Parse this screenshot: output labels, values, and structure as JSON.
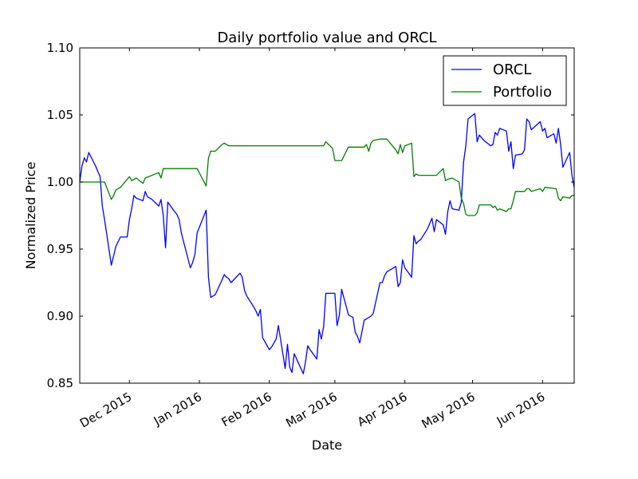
{
  "chart_data": {
    "type": "line",
    "title": "Daily portfolio value and ORCL",
    "xlabel": "Date",
    "ylabel": "Normalized Price",
    "ylim": [
      0.85,
      1.1
    ],
    "xlim": [
      "2015-11-09",
      "2016-06-15"
    ],
    "grid": false,
    "legend_position": "top-right",
    "y_ticks": [
      "0.85",
      "0.90",
      "0.95",
      "1.00",
      "1.05",
      "1.10"
    ],
    "x_ticks": [
      {
        "date": "2015-12-01",
        "label": "Dec 2015"
      },
      {
        "date": "2016-01-01",
        "label": "Jan 2016"
      },
      {
        "date": "2016-02-01",
        "label": "Feb 2016"
      },
      {
        "date": "2016-03-01",
        "label": "Mar 2016"
      },
      {
        "date": "2016-04-01",
        "label": "Apr 2016"
      },
      {
        "date": "2016-05-01",
        "label": "May 2016"
      },
      {
        "date": "2016-06-01",
        "label": "Jun 2016"
      }
    ],
    "series": [
      {
        "name": "ORCL",
        "color": "#0000ff",
        "points": [
          [
            "2015-11-09",
            1.0
          ],
          [
            "2015-11-10",
            1.012
          ],
          [
            "2015-11-11",
            1.018
          ],
          [
            "2015-11-12",
            1.015
          ],
          [
            "2015-11-13",
            1.022
          ],
          [
            "2015-11-16",
            1.012
          ],
          [
            "2015-11-17",
            1.008
          ],
          [
            "2015-11-18",
            1.004
          ],
          [
            "2015-11-19",
            0.982
          ],
          [
            "2015-11-20",
            0.972
          ],
          [
            "2015-11-23",
            0.938
          ],
          [
            "2015-11-24",
            0.945
          ],
          [
            "2015-11-25",
            0.952
          ],
          [
            "2015-11-27",
            0.959
          ],
          [
            "2015-11-30",
            0.959
          ],
          [
            "2015-12-01",
            0.972
          ],
          [
            "2015-12-02",
            0.98
          ],
          [
            "2015-12-03",
            0.99
          ],
          [
            "2015-12-04",
            0.988
          ],
          [
            "2015-12-07",
            0.986
          ],
          [
            "2015-12-08",
            0.993
          ],
          [
            "2015-12-09",
            0.989
          ],
          [
            "2015-12-10",
            0.988
          ],
          [
            "2015-12-11",
            0.987
          ],
          [
            "2015-12-14",
            0.982
          ],
          [
            "2015-12-15",
            0.987
          ],
          [
            "2015-12-16",
            0.975
          ],
          [
            "2015-12-17",
            0.951
          ],
          [
            "2015-12-18",
            0.985
          ],
          [
            "2015-12-21",
            0.978
          ],
          [
            "2015-12-22",
            0.976
          ],
          [
            "2015-12-23",
            0.972
          ],
          [
            "2015-12-24",
            0.962
          ],
          [
            "2015-12-28",
            0.936
          ],
          [
            "2015-12-29",
            0.94
          ],
          [
            "2015-12-30",
            0.946
          ],
          [
            "2015-12-31",
            0.962
          ],
          [
            "2016-01-04",
            0.979
          ],
          [
            "2016-01-05",
            0.929
          ],
          [
            "2016-01-06",
            0.914
          ],
          [
            "2016-01-07",
            0.915
          ],
          [
            "2016-01-08",
            0.916
          ],
          [
            "2016-01-11",
            0.927
          ],
          [
            "2016-01-12",
            0.931
          ],
          [
            "2016-01-13",
            0.929
          ],
          [
            "2016-01-14",
            0.928
          ],
          [
            "2016-01-15",
            0.925
          ],
          [
            "2016-01-19",
            0.932
          ],
          [
            "2016-01-20",
            0.929
          ],
          [
            "2016-01-21",
            0.919
          ],
          [
            "2016-01-22",
            0.915
          ],
          [
            "2016-01-25",
            0.907
          ],
          [
            "2016-01-26",
            0.904
          ],
          [
            "2016-01-27",
            0.9
          ],
          [
            "2016-01-28",
            0.905
          ],
          [
            "2016-01-29",
            0.884
          ],
          [
            "2016-02-01",
            0.875
          ],
          [
            "2016-02-02",
            0.877
          ],
          [
            "2016-02-03",
            0.88
          ],
          [
            "2016-02-04",
            0.883
          ],
          [
            "2016-02-05",
            0.893
          ],
          [
            "2016-02-08",
            0.861
          ],
          [
            "2016-02-09",
            0.879
          ],
          [
            "2016-02-10",
            0.862
          ],
          [
            "2016-02-11",
            0.858
          ],
          [
            "2016-02-12",
            0.872
          ],
          [
            "2016-02-16",
            0.857
          ],
          [
            "2016-02-17",
            0.866
          ],
          [
            "2016-02-18",
            0.878
          ],
          [
            "2016-02-19",
            0.875
          ],
          [
            "2016-02-22",
            0.868
          ],
          [
            "2016-02-23",
            0.89
          ],
          [
            "2016-02-24",
            0.883
          ],
          [
            "2016-02-25",
            0.892
          ],
          [
            "2016-02-26",
            0.917
          ],
          [
            "2016-02-29",
            0.917
          ],
          [
            "2016-03-01",
            0.917
          ],
          [
            "2016-03-02",
            0.893
          ],
          [
            "2016-03-03",
            0.901
          ],
          [
            "2016-03-04",
            0.92
          ],
          [
            "2016-03-07",
            0.901
          ],
          [
            "2016-03-08",
            0.9
          ],
          [
            "2016-03-09",
            0.899
          ],
          [
            "2016-03-10",
            0.888
          ],
          [
            "2016-03-11",
            0.885
          ],
          [
            "2016-03-12",
            0.88
          ],
          [
            "2016-03-14",
            0.897
          ],
          [
            "2016-03-15",
            0.898
          ],
          [
            "2016-03-16",
            0.899
          ],
          [
            "2016-03-17",
            0.9
          ],
          [
            "2016-03-18",
            0.902
          ],
          [
            "2016-03-21",
            0.925
          ],
          [
            "2016-03-22",
            0.925
          ],
          [
            "2016-03-23",
            0.93
          ],
          [
            "2016-03-24",
            0.933
          ],
          [
            "2016-03-28",
            0.937
          ],
          [
            "2016-03-29",
            0.922
          ],
          [
            "2016-03-30",
            0.925
          ],
          [
            "2016-03-31",
            0.942
          ],
          [
            "2016-04-01",
            0.936
          ],
          [
            "2016-04-04",
            0.929
          ],
          [
            "2016-04-05",
            0.96
          ],
          [
            "2016-04-06",
            0.954
          ],
          [
            "2016-04-07",
            0.956
          ],
          [
            "2016-04-08",
            0.957
          ],
          [
            "2016-04-11",
            0.965
          ],
          [
            "2016-04-12",
            0.969
          ],
          [
            "2016-04-13",
            0.973
          ],
          [
            "2016-04-14",
            0.963
          ],
          [
            "2016-04-15",
            0.972
          ],
          [
            "2016-04-18",
            0.968
          ],
          [
            "2016-04-19",
            0.961
          ],
          [
            "2016-04-20",
            0.978
          ],
          [
            "2016-04-21",
            0.986
          ],
          [
            "2016-04-22",
            0.98
          ],
          [
            "2016-04-25",
            0.979
          ],
          [
            "2016-04-26",
            0.985
          ],
          [
            "2016-04-27",
            1.015
          ],
          [
            "2016-04-28",
            1.027
          ],
          [
            "2016-04-29",
            1.047
          ],
          [
            "2016-05-02",
            1.051
          ],
          [
            "2016-05-03",
            1.03
          ],
          [
            "2016-05-04",
            1.035
          ],
          [
            "2016-05-05",
            1.033
          ],
          [
            "2016-05-06",
            1.031
          ],
          [
            "2016-05-09",
            1.027
          ],
          [
            "2016-05-10",
            1.028
          ],
          [
            "2016-05-11",
            1.037
          ],
          [
            "2016-05-12",
            1.035
          ],
          [
            "2016-05-13",
            1.04
          ],
          [
            "2016-05-16",
            1.038
          ],
          [
            "2016-05-17",
            1.023
          ],
          [
            "2016-05-18",
            1.03
          ],
          [
            "2016-05-19",
            1.01
          ],
          [
            "2016-05-20",
            1.02
          ],
          [
            "2016-05-23",
            1.021
          ],
          [
            "2016-05-24",
            1.024
          ],
          [
            "2016-05-25",
            1.047
          ],
          [
            "2016-05-26",
            1.045
          ],
          [
            "2016-05-27",
            1.039
          ],
          [
            "2016-05-31",
            1.045
          ],
          [
            "2016-06-01",
            1.038
          ],
          [
            "2016-06-02",
            1.04
          ],
          [
            "2016-06-03",
            1.033
          ],
          [
            "2016-06-06",
            1.036
          ],
          [
            "2016-06-07",
            1.029
          ],
          [
            "2016-06-08",
            1.04
          ],
          [
            "2016-06-09",
            1.028
          ],
          [
            "2016-06-10",
            1.011
          ],
          [
            "2016-06-13",
            1.022
          ],
          [
            "2016-06-14",
            1.005
          ],
          [
            "2016-06-15",
            0.996
          ]
        ]
      },
      {
        "name": "Portfolio",
        "color": "#008000",
        "points": [
          [
            "2015-11-09",
            1.0
          ],
          [
            "2015-11-20",
            1.0
          ],
          [
            "2015-11-23",
            0.987
          ],
          [
            "2015-11-24",
            0.99
          ],
          [
            "2015-11-25",
            0.994
          ],
          [
            "2015-11-27",
            0.996
          ],
          [
            "2015-11-30",
            1.002
          ],
          [
            "2015-12-01",
            1.004
          ],
          [
            "2015-12-02",
            1.001
          ],
          [
            "2015-12-04",
            1.003
          ],
          [
            "2015-12-07",
            0.999
          ],
          [
            "2015-12-08",
            1.003
          ],
          [
            "2015-12-14",
            1.007
          ],
          [
            "2015-12-15",
            1.003
          ],
          [
            "2015-12-16",
            1.01
          ],
          [
            "2015-12-31",
            1.01
          ],
          [
            "2016-01-04",
            0.997
          ],
          [
            "2016-01-05",
            1.018
          ],
          [
            "2016-01-06",
            1.023
          ],
          [
            "2016-01-08",
            1.023
          ],
          [
            "2016-01-11",
            1.028
          ],
          [
            "2016-01-12",
            1.029
          ],
          [
            "2016-01-14",
            1.027
          ],
          [
            "2016-02-25",
            1.027
          ],
          [
            "2016-02-26",
            1.03
          ],
          [
            "2016-02-29",
            1.025
          ],
          [
            "2016-03-01",
            1.016
          ],
          [
            "2016-03-04",
            1.016
          ],
          [
            "2016-03-07",
            1.026
          ],
          [
            "2016-03-14",
            1.026
          ],
          [
            "2016-03-15",
            1.028
          ],
          [
            "2016-03-16",
            1.023
          ],
          [
            "2016-03-17",
            1.029
          ],
          [
            "2016-03-18",
            1.031
          ],
          [
            "2016-03-21",
            1.032
          ],
          [
            "2016-03-24",
            1.032
          ],
          [
            "2016-03-28",
            1.024
          ],
          [
            "2016-03-29",
            1.021
          ],
          [
            "2016-03-30",
            1.028
          ],
          [
            "2016-03-31",
            1.022
          ],
          [
            "2016-04-01",
            1.027
          ],
          [
            "2016-04-04",
            1.029
          ],
          [
            "2016-04-05",
            1.004
          ],
          [
            "2016-04-06",
            1.006
          ],
          [
            "2016-04-07",
            1.005
          ],
          [
            "2016-04-15",
            1.005
          ],
          [
            "2016-04-18",
            1.01
          ],
          [
            "2016-04-19",
            1.001
          ],
          [
            "2016-04-20",
            1.002
          ],
          [
            "2016-04-22",
            1.003
          ],
          [
            "2016-04-25",
            1.0
          ],
          [
            "2016-04-26",
            0.988
          ],
          [
            "2016-04-27",
            0.984
          ],
          [
            "2016-04-28",
            0.976
          ],
          [
            "2016-04-29",
            0.975
          ],
          [
            "2016-05-02",
            0.975
          ],
          [
            "2016-05-03",
            0.977
          ],
          [
            "2016-05-04",
            0.983
          ],
          [
            "2016-05-09",
            0.983
          ],
          [
            "2016-05-10",
            0.981
          ],
          [
            "2016-05-11",
            0.982
          ],
          [
            "2016-05-12",
            0.979
          ],
          [
            "2016-05-13",
            0.98
          ],
          [
            "2016-05-16",
            0.978
          ],
          [
            "2016-05-17",
            0.98
          ],
          [
            "2016-05-18",
            0.98
          ],
          [
            "2016-05-19",
            0.986
          ],
          [
            "2016-05-20",
            0.993
          ],
          [
            "2016-05-24",
            0.993
          ],
          [
            "2016-05-25",
            0.995
          ],
          [
            "2016-05-26",
            0.995
          ],
          [
            "2016-05-27",
            0.993
          ],
          [
            "2016-05-31",
            0.995
          ],
          [
            "2016-06-01",
            0.993
          ],
          [
            "2016-06-02",
            0.996
          ],
          [
            "2016-06-07",
            0.995
          ],
          [
            "2016-06-08",
            0.988
          ],
          [
            "2016-06-09",
            0.986
          ],
          [
            "2016-06-10",
            0.989
          ],
          [
            "2016-06-13",
            0.988
          ],
          [
            "2016-06-14",
            0.99
          ],
          [
            "2016-06-15",
            0.99
          ]
        ]
      }
    ]
  }
}
